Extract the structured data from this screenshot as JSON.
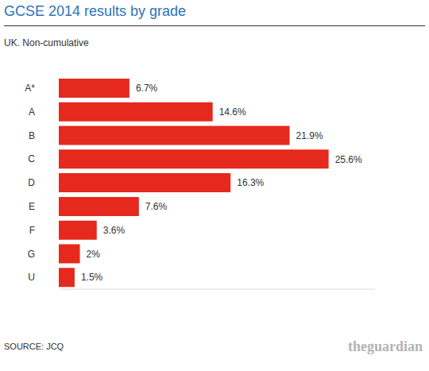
{
  "chart_data": {
    "type": "bar",
    "title": "GCSE 2014 results by grade",
    "subtitle": "UK. Non-cumulative",
    "categories": [
      "A*",
      "A",
      "B",
      "C",
      "D",
      "E",
      "F",
      "G",
      "U"
    ],
    "values": [
      6.7,
      14.6,
      21.9,
      25.6,
      16.3,
      7.6,
      3.6,
      2,
      1.5
    ],
    "value_labels": [
      "6.7%",
      "14.6%",
      "21.9%",
      "25.6%",
      "16.3%",
      "7.6%",
      "3.6%",
      "2%",
      "1.5%"
    ],
    "color": "#e5291c",
    "xlim": [
      0,
      30
    ],
    "orientation": "horizontal",
    "data_labels": true,
    "tick_labels": "y",
    "source": "SOURCE: JCQ",
    "credit": "theguardian"
  }
}
